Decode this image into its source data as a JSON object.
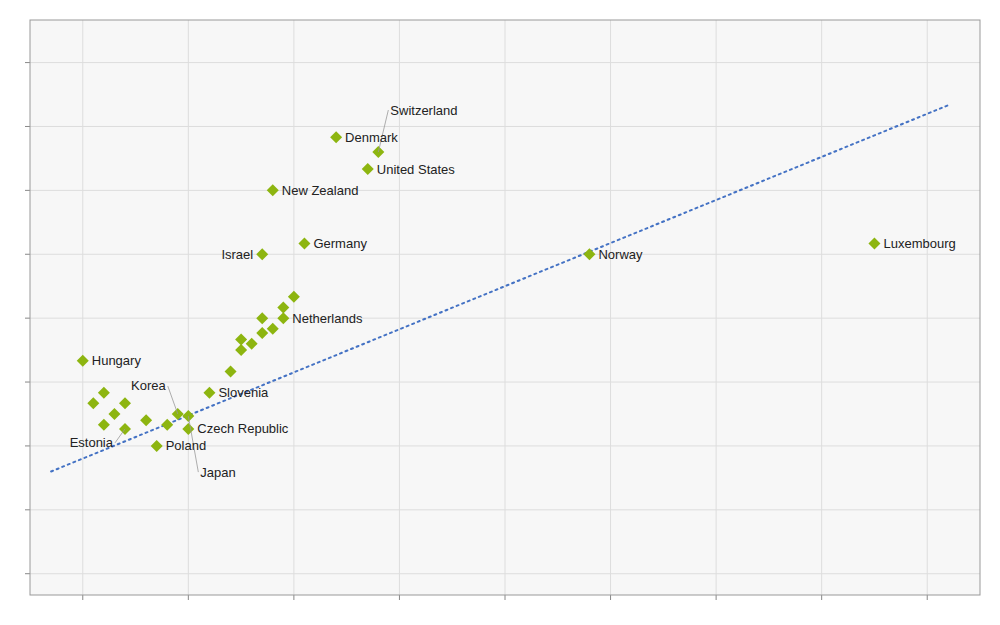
{
  "chart_data": {
    "type": "scatter",
    "x": [
      10,
      11,
      12,
      12,
      13,
      14,
      14,
      16,
      17,
      18,
      19,
      20,
      20,
      22,
      24,
      25,
      25,
      26,
      27,
      27,
      28,
      29,
      29,
      30,
      27,
      31,
      28,
      34,
      37,
      38,
      58,
      85
    ],
    "values": [
      310,
      290,
      295,
      280,
      285,
      290,
      278,
      282,
      270,
      280,
      285,
      278,
      284,
      295,
      305,
      315,
      320,
      318,
      323,
      330,
      325,
      335,
      330,
      340,
      360,
      365,
      390,
      415,
      400,
      408,
      360,
      365
    ],
    "labels": [
      "Hungary",
      null,
      null,
      null,
      null,
      null,
      "Estonia",
      null,
      "Poland",
      null,
      "Korea",
      "Czech Republic",
      "Japan",
      "Slovenia",
      null,
      null,
      null,
      null,
      null,
      null,
      null,
      null,
      "Netherlands",
      null,
      "Israel",
      "Germany",
      "New Zealand",
      "Denmark",
      "United States",
      "Switzerland",
      "Norway",
      "Luxembourg"
    ],
    "color": "#8DB510",
    "marker": "diamond",
    "trendline": {
      "x": [
        7,
        92
      ],
      "values": [
        258,
        430
      ],
      "color": "#4472C4",
      "line_style": "dotted"
    },
    "xlim": [
      5,
      95
    ],
    "ylim": [
      200,
      470
    ],
    "xticks": [
      10,
      20,
      30,
      40,
      50,
      60,
      70,
      80,
      90
    ],
    "yticks": [
      210,
      240,
      270,
      300,
      330,
      360,
      390,
      420,
      450
    ],
    "grid": true,
    "tick_labels": false
  }
}
